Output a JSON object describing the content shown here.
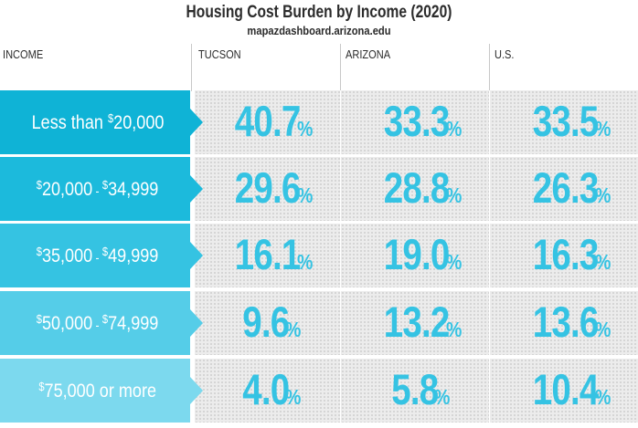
{
  "title": "Housing Cost Burden by Income (2020)",
  "subtitle": "mapazdashboard.arizona.edu",
  "headers": {
    "income": "INCOME",
    "tucson": "TUCSON",
    "arizona": "ARIZONA",
    "us": "U.S."
  },
  "pct_symbol": "%",
  "colors": {
    "row_1": "#0fb3d6",
    "row_2": "#1cbadc",
    "row_3": "#35c3e2",
    "row_4": "#55cde8",
    "row_5": "#7cd9ee",
    "value_text": "#35c3e3"
  },
  "rows": [
    {
      "label_parts": [
        "Less than ",
        "$",
        "20,000"
      ],
      "tucson": "40.7",
      "arizona": "33.3",
      "us": "33.5"
    },
    {
      "label_parts": [
        "$",
        "20,000 - ",
        "$",
        "34,999"
      ],
      "tucson": "29.6",
      "arizona": "28.8",
      "us": "26.3"
    },
    {
      "label_parts": [
        "$",
        "35,000 - ",
        "$",
        "49,999"
      ],
      "tucson": "16.1",
      "arizona": "19.0",
      "us": "16.3"
    },
    {
      "label_parts": [
        "$",
        "50,000 - ",
        "$",
        "74,999"
      ],
      "tucson": "9.6",
      "arizona": "13.2",
      "us": "13.6"
    },
    {
      "label_parts": [
        "$",
        "75,000 or more"
      ],
      "tucson": "4.0",
      "arizona": "5.8",
      "us": "10.4"
    }
  ],
  "chart_data": {
    "type": "table",
    "title": "Housing Cost Burden by Income (2020)",
    "subtitle": "mapazdashboard.arizona.edu",
    "columns": [
      "INCOME",
      "TUCSON",
      "ARIZONA",
      "U.S."
    ],
    "categories": [
      "Less than $20,000",
      "$20,000 - $34,999",
      "$35,000 - $49,999",
      "$50,000 - $74,999",
      "$75,000 or more"
    ],
    "series": [
      {
        "name": "TUCSON",
        "values": [
          40.7,
          29.6,
          16.1,
          9.6,
          4.0
        ]
      },
      {
        "name": "ARIZONA",
        "values": [
          33.3,
          28.8,
          19.0,
          13.2,
          5.8
        ]
      },
      {
        "name": "U.S.",
        "values": [
          33.5,
          26.3,
          16.3,
          13.6,
          10.4
        ]
      }
    ],
    "unit": "%"
  }
}
